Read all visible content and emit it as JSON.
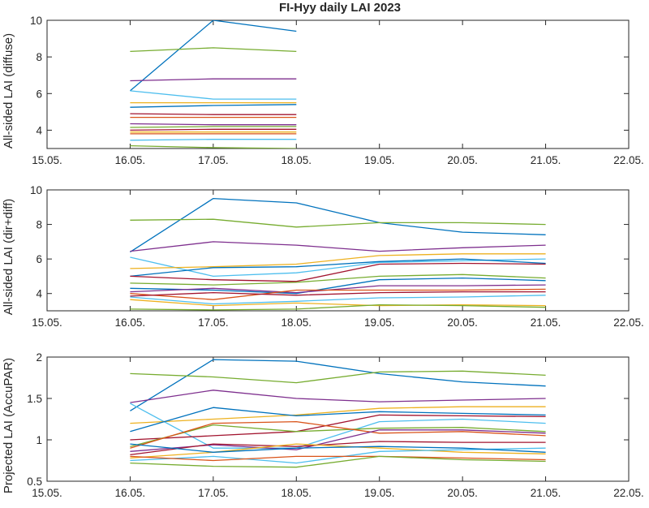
{
  "chart_data": {
    "title": "FI-Hyy daily LAI 2023",
    "type": "line",
    "x_tick_labels": [
      "15.05.",
      "16.05.",
      "17.05.",
      "18.05.",
      "19.05.",
      "20.05.",
      "21.05.",
      "22.05."
    ],
    "xlim": [
      "15.05.",
      "22.05."
    ],
    "grid": false,
    "legend": "none",
    "panels": [
      {
        "ylabel": "All-sided LAI (diffuse)",
        "ylim": [
          3,
          10
        ],
        "yticks": [
          4,
          6,
          8,
          10
        ],
        "x": [
          "16.05.",
          "17.05.",
          "18.05."
        ],
        "series": [
          {
            "color": "#0072BD",
            "values": [
              6.15,
              10.0,
              9.4
            ]
          },
          {
            "color": "#77AC30",
            "values": [
              8.3,
              8.5,
              8.3
            ]
          },
          {
            "color": "#7E2F8E",
            "values": [
              6.7,
              6.8,
              6.8
            ]
          },
          {
            "color": "#4DBEEE",
            "values": [
              6.15,
              5.7,
              5.7
            ]
          },
          {
            "color": "#EDB120",
            "values": [
              5.5,
              5.5,
              5.5
            ]
          },
          {
            "color": "#0072BD",
            "values": [
              5.25,
              5.35,
              5.4
            ]
          },
          {
            "color": "#A2142F",
            "values": [
              4.9,
              4.85,
              4.85
            ]
          },
          {
            "color": "#D95319",
            "values": [
              4.7,
              4.7,
              4.7
            ]
          },
          {
            "color": "#7E2F8E",
            "values": [
              4.35,
              4.3,
              4.3
            ]
          },
          {
            "color": "#77AC30",
            "values": [
              4.15,
              4.2,
              4.2
            ]
          },
          {
            "color": "#A2142F",
            "values": [
              4.0,
              4.05,
              4.05
            ]
          },
          {
            "color": "#EDB120",
            "values": [
              3.9,
              3.9,
              3.9
            ]
          },
          {
            "color": "#D95319",
            "values": [
              3.8,
              3.8,
              3.8
            ]
          },
          {
            "color": "#4DBEEE",
            "values": [
              3.45,
              3.5,
              3.5
            ]
          },
          {
            "color": "#77AC30",
            "values": [
              3.15,
              3.05,
              3.0
            ]
          }
        ]
      },
      {
        "ylabel": "All-sided LAI (dir+diff)",
        "ylim": [
          3,
          10
        ],
        "yticks": [
          4,
          6,
          8,
          10
        ],
        "x": [
          "16.05.",
          "17.05.",
          "18.05.",
          "19.05.",
          "20.05.",
          "21.05."
        ],
        "series": [
          {
            "color": "#0072BD",
            "values": [
              6.4,
              9.5,
              9.25,
              8.1,
              7.55,
              7.4
            ]
          },
          {
            "color": "#77AC30",
            "values": [
              8.25,
              8.3,
              7.85,
              8.1,
              8.1,
              8.0
            ]
          },
          {
            "color": "#7E2F8E",
            "values": [
              6.45,
              7.0,
              6.8,
              6.45,
              6.65,
              6.8
            ]
          },
          {
            "color": "#4DBEEE",
            "values": [
              6.1,
              5.0,
              5.2,
              5.8,
              5.9,
              6.0
            ]
          },
          {
            "color": "#EDB120",
            "values": [
              5.45,
              5.55,
              5.7,
              6.2,
              6.3,
              6.3
            ]
          },
          {
            "color": "#0072BD",
            "values": [
              5.0,
              5.5,
              5.55,
              5.85,
              6.0,
              5.75
            ]
          },
          {
            "color": "#A2142F",
            "values": [
              5.0,
              4.8,
              4.7,
              5.7,
              5.75,
              5.7
            ]
          },
          {
            "color": "#77AC30",
            "values": [
              4.6,
              4.5,
              4.65,
              5.0,
              5.1,
              4.9
            ]
          },
          {
            "color": "#0072BD",
            "values": [
              4.3,
              4.2,
              4.0,
              4.8,
              4.9,
              4.75
            ]
          },
          {
            "color": "#7E2F8E",
            "values": [
              4.1,
              4.3,
              4.05,
              4.45,
              4.45,
              4.5
            ]
          },
          {
            "color": "#D95319",
            "values": [
              4.0,
              3.65,
              4.2,
              4.2,
              4.2,
              4.25
            ]
          },
          {
            "color": "#A2142F",
            "values": [
              3.85,
              4.05,
              3.9,
              4.05,
              4.1,
              4.1
            ]
          },
          {
            "color": "#4DBEEE",
            "values": [
              3.8,
              3.4,
              3.55,
              3.75,
              3.8,
              3.9
            ]
          },
          {
            "color": "#EDB120",
            "values": [
              3.65,
              3.3,
              3.45,
              3.3,
              3.35,
              3.3
            ]
          },
          {
            "color": "#77AC30",
            "values": [
              3.1,
              3.05,
              3.1,
              3.35,
              3.3,
              3.2
            ]
          }
        ]
      },
      {
        "ylabel": "Projected LAI (AccuPAR)",
        "ylim": [
          0.5,
          2
        ],
        "yticks": [
          0.5,
          1,
          1.5,
          2
        ],
        "x": [
          "16.05.",
          "17.05.",
          "18.05.",
          "19.05.",
          "20.05.",
          "21.05."
        ],
        "series": [
          {
            "color": "#0072BD",
            "values": [
              1.35,
              1.97,
              1.95,
              1.8,
              1.7,
              1.65
            ]
          },
          {
            "color": "#77AC30",
            "values": [
              1.8,
              1.76,
              1.69,
              1.82,
              1.83,
              1.78
            ]
          },
          {
            "color": "#7E2F8E",
            "values": [
              1.45,
              1.6,
              1.5,
              1.46,
              1.48,
              1.5
            ]
          },
          {
            "color": "#4DBEEE",
            "values": [
              1.44,
              0.9,
              0.9,
              1.22,
              1.25,
              1.2
            ]
          },
          {
            "color": "#EDB120",
            "values": [
              1.2,
              1.25,
              1.3,
              1.38,
              1.4,
              1.4
            ]
          },
          {
            "color": "#0072BD",
            "values": [
              1.1,
              1.39,
              1.29,
              1.34,
              1.32,
              1.3
            ]
          },
          {
            "color": "#A2142F",
            "values": [
              1.0,
              1.05,
              1.1,
              1.3,
              1.29,
              1.28
            ]
          },
          {
            "color": "#77AC30",
            "values": [
              0.92,
              1.18,
              1.1,
              1.14,
              1.15,
              1.1
            ]
          },
          {
            "color": "#D95319",
            "values": [
              0.9,
              1.2,
              1.22,
              1.08,
              1.1,
              1.05
            ]
          },
          {
            "color": "#7E2F8E",
            "values": [
              0.86,
              0.94,
              0.88,
              1.12,
              1.12,
              1.08
            ]
          },
          {
            "color": "#A2142F",
            "values": [
              0.82,
              0.95,
              0.92,
              0.98,
              0.97,
              0.97
            ]
          },
          {
            "color": "#EDB120",
            "values": [
              0.78,
              0.85,
              0.95,
              0.9,
              0.85,
              0.83
            ]
          },
          {
            "color": "#4DBEEE",
            "values": [
              0.75,
              0.8,
              0.72,
              0.86,
              0.88,
              0.9
            ]
          },
          {
            "color": "#0072BD",
            "values": [
              0.95,
              0.85,
              0.9,
              0.92,
              0.9,
              0.85
            ]
          },
          {
            "color": "#D95319",
            "values": [
              0.8,
              0.75,
              0.8,
              0.8,
              0.78,
              0.76
            ]
          },
          {
            "color": "#77AC30",
            "values": [
              0.72,
              0.68,
              0.67,
              0.8,
              0.76,
              0.74
            ]
          }
        ]
      }
    ]
  }
}
